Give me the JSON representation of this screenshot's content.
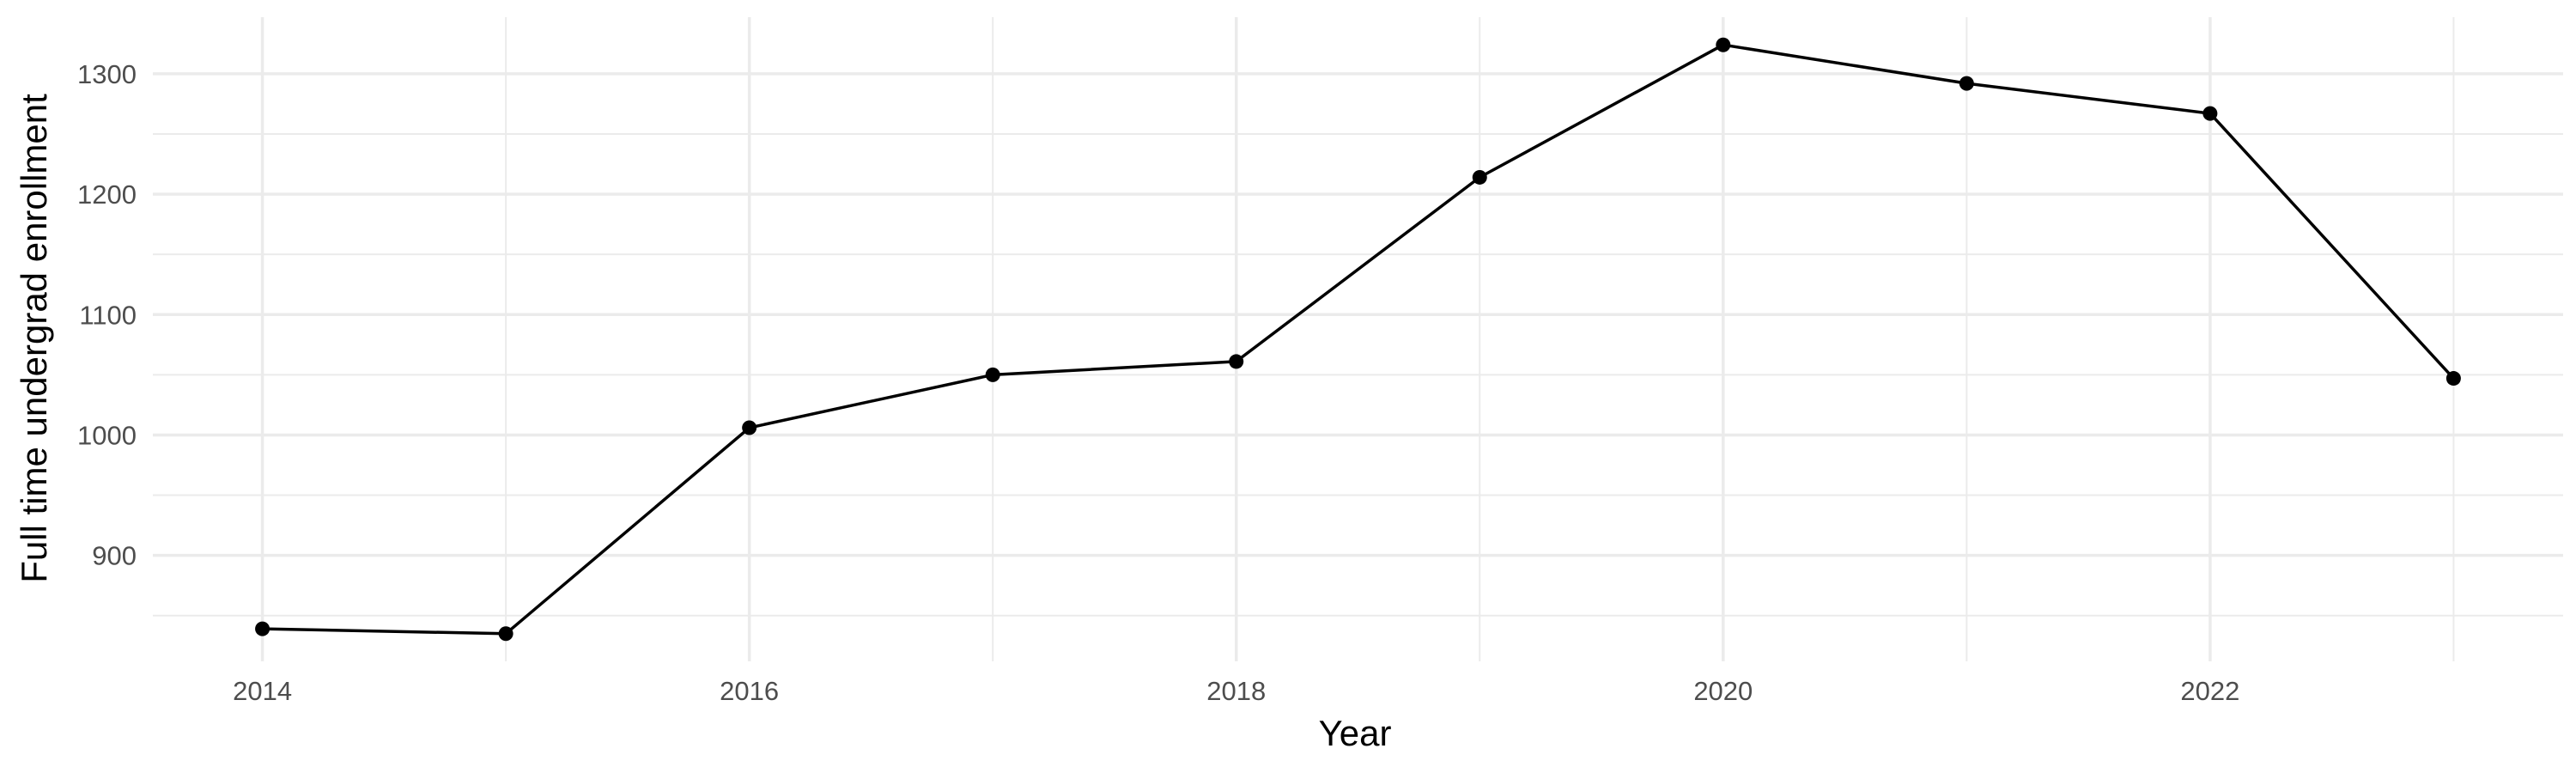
{
  "chart_data": {
    "type": "line",
    "xlabel": "Year",
    "ylabel": "Full time undergrad enrollment",
    "x": [
      2014,
      2015,
      2016,
      2017,
      2018,
      2019,
      2020,
      2021,
      2022,
      2023
    ],
    "series": [
      {
        "values": [
          839,
          835,
          1006,
          1050,
          1061,
          1214,
          1324,
          1292,
          1267,
          1047
        ]
      }
    ],
    "xlim": [
      2013.55,
      2023.45
    ],
    "ylim": [
      812,
      1347
    ],
    "x_ticks": [
      2014,
      2016,
      2018,
      2020,
      2022
    ],
    "x_tick_labels": [
      "2014",
      "2016",
      "2018",
      "2020",
      "2022"
    ],
    "y_ticks": [
      900,
      1000,
      1100,
      1200,
      1300
    ],
    "y_tick_labels": [
      "900",
      "1000",
      "1100",
      "1200",
      "1300"
    ],
    "grid": true,
    "legend": "none",
    "colors": {
      "line": "#000000",
      "points": "#000000",
      "grid": "#ebebeb",
      "tick_text": "#4d4d4d"
    }
  }
}
